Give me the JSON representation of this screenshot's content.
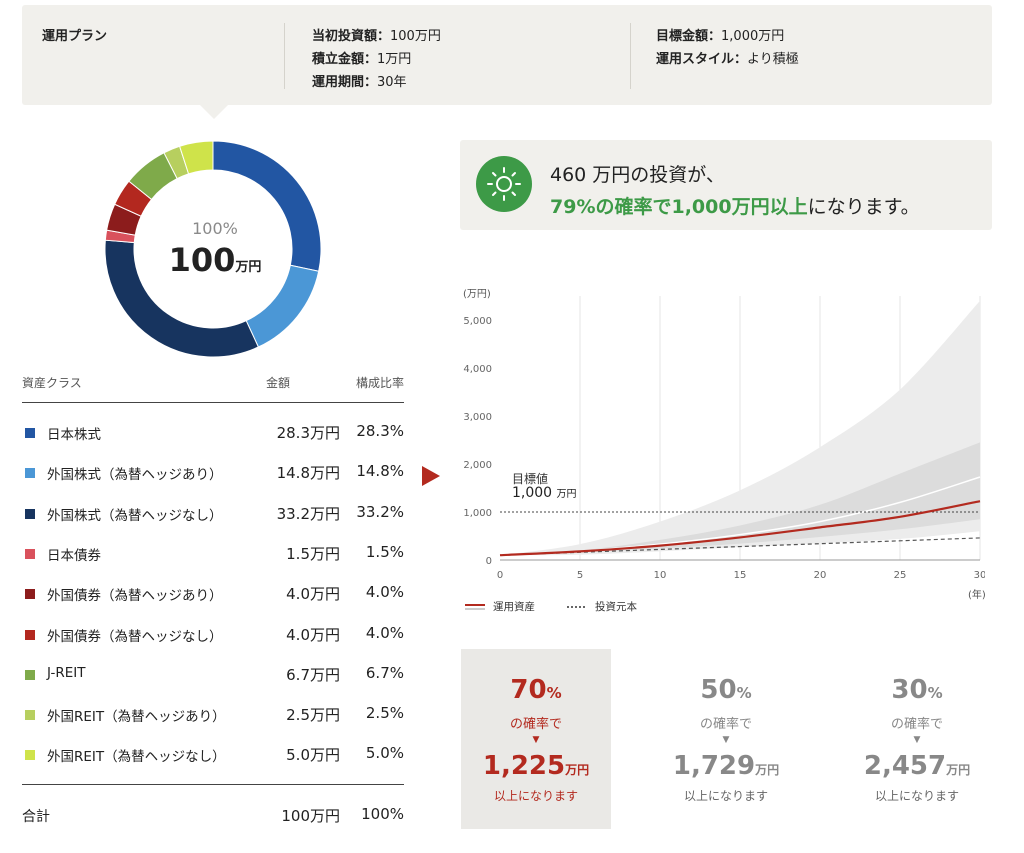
{
  "plan": {
    "title": "運用プラン",
    "initial_label": "当初投資額：",
    "initial_value": "100万円",
    "monthly_label": "積立金額：",
    "monthly_value": "1万円",
    "period_label": "運用期間：",
    "period_value": "30年",
    "target_label": "目標金額：",
    "target_value": "1,000万円",
    "style_label": "運用スタイル：",
    "style_value": "より積極"
  },
  "donut": {
    "pct": "100%",
    "amount": "100",
    "unit": "万円"
  },
  "allocation": {
    "header": {
      "asset_class": "資産クラス",
      "amount": "金額",
      "ratio": "構成比率"
    },
    "rows": [
      {
        "name": "日本株式",
        "amount": "28.3万円",
        "ratio": "28.3%",
        "value": 28.3,
        "color": "#2256a3"
      },
      {
        "name": "外国株式（為替ヘッジあり）",
        "amount": "14.8万円",
        "ratio": "14.8%",
        "value": 14.8,
        "color": "#4b97d6"
      },
      {
        "name": "外国株式（為替ヘッジなし）",
        "amount": "33.2万円",
        "ratio": "33.2%",
        "value": 33.2,
        "color": "#17345f"
      },
      {
        "name": "日本債券",
        "amount": "1.5万円",
        "ratio": "1.5%",
        "value": 1.5,
        "color": "#d9515c"
      },
      {
        "name": "外国債券（為替ヘッジあり）",
        "amount": "4.0万円",
        "ratio": "4.0%",
        "value": 4.0,
        "color": "#8c1c1c"
      },
      {
        "name": "外国債券（為替ヘッジなし）",
        "amount": "4.0万円",
        "ratio": "4.0%",
        "value": 4.0,
        "color": "#b3281f"
      },
      {
        "name": "J-REIT",
        "amount": "6.7万円",
        "ratio": "6.7%",
        "value": 6.7,
        "color": "#7faa4a"
      },
      {
        "name": "外国REIT（為替ヘッジあり）",
        "amount": "2.5万円",
        "ratio": "2.5%",
        "value": 2.5,
        "color": "#b7cf5f"
      },
      {
        "name": "外国REIT（為替ヘッジなし）",
        "amount": "5.0万円",
        "ratio": "5.0%",
        "value": 5.0,
        "color": "#cfe34a"
      }
    ],
    "total": {
      "name": "合計",
      "amount": "100万円",
      "ratio": "100%"
    }
  },
  "message": {
    "line1": "460 万円の投資が、",
    "highlight": "79%の確率で1,000万円以上",
    "rest": "になります。",
    "icon": "sun-icon",
    "icon_color": "#3d9a47"
  },
  "chart_data": {
    "type": "area",
    "y_unit_label": "(万円)",
    "x_unit_label": "(年)",
    "x_ticks": [
      "0",
      "5",
      "10",
      "15",
      "20",
      "25",
      "30"
    ],
    "y_ticks": [
      "0",
      "1,000",
      "2,000",
      "3,000",
      "4,000",
      "5,000"
    ],
    "xlim": [
      0,
      30
    ],
    "ylim": [
      0,
      5500
    ],
    "target": {
      "label": "目標値",
      "value": 1000,
      "value_text": "1,000",
      "unit": "万円"
    },
    "x": [
      0,
      5,
      10,
      15,
      20,
      25,
      30
    ],
    "series": [
      {
        "name": "運用資産",
        "values": [
          100,
          180,
          300,
          470,
          680,
          900,
          1225
        ],
        "color": "#b32a1f"
      },
      {
        "name": "投資元本",
        "values": [
          100,
          160,
          220,
          280,
          340,
          400,
          460
        ],
        "color": "#555555"
      }
    ],
    "band_outer_upper": [
      100,
      330,
      800,
      1450,
      2350,
      3550,
      5400
    ],
    "band_outer_lower": [
      100,
      110,
      180,
      270,
      350,
      440,
      600
    ],
    "band_inner_upper": [
      100,
      200,
      420,
      720,
      1150,
      1800,
      2450
    ],
    "band_inner_lower": [
      100,
      160,
      240,
      340,
      480,
      640,
      850
    ],
    "median": [
      100,
      185,
      330,
      530,
      800,
      1200,
      1729
    ]
  },
  "cards": [
    {
      "pct": "70",
      "pct_unit": "%",
      "prob": "の確率で",
      "amount": "1,225",
      "unit": "万円",
      "sub": "以上になります",
      "active": true
    },
    {
      "pct": "50",
      "pct_unit": "%",
      "prob": "の確率で",
      "amount": "1,729",
      "unit": "万円",
      "sub": "以上になります",
      "active": false
    },
    {
      "pct": "30",
      "pct_unit": "%",
      "prob": "の確率で",
      "amount": "2,457",
      "unit": "万円",
      "sub": "以上になります",
      "active": false
    }
  ]
}
